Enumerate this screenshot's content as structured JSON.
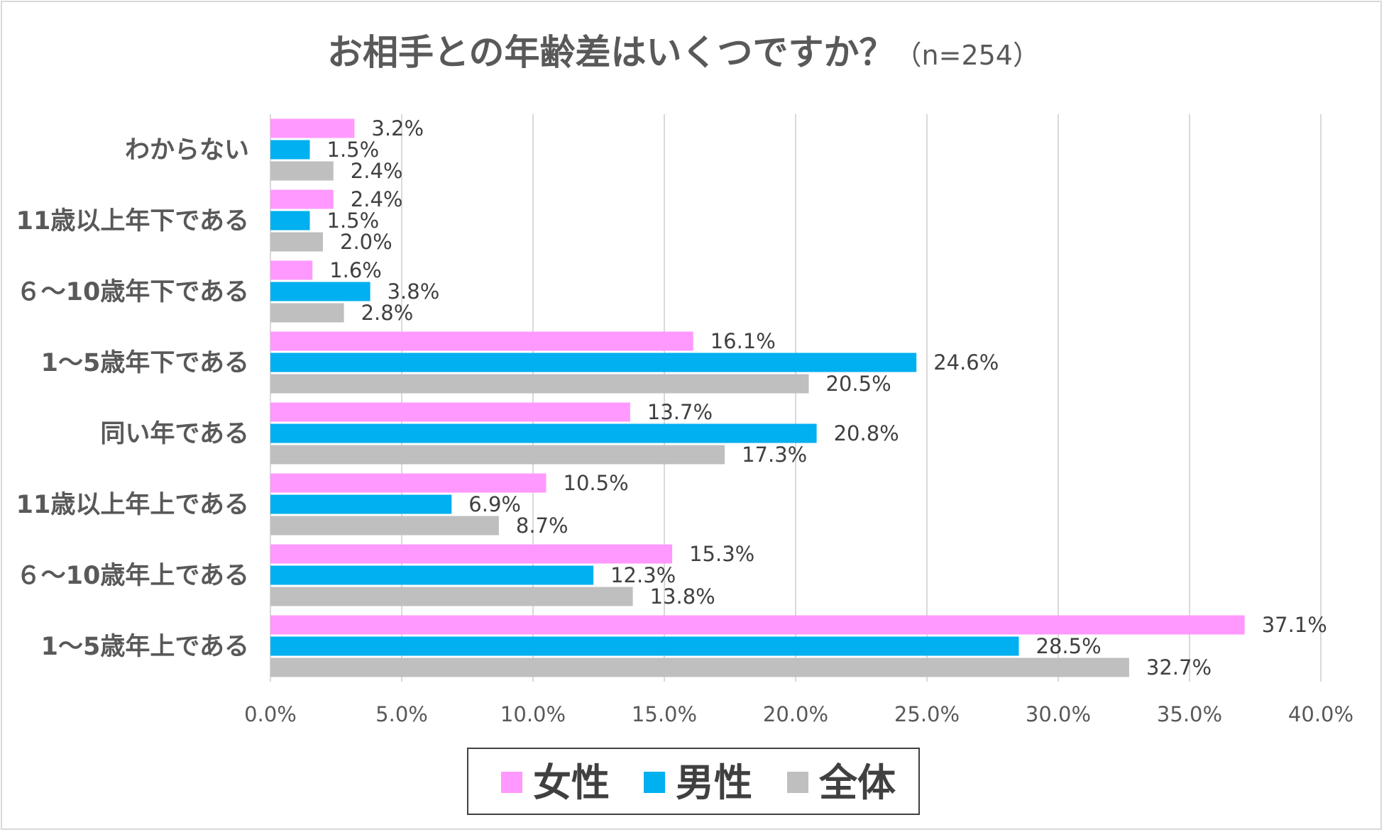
{
  "chart_data": {
    "type": "bar",
    "orientation": "horizontal",
    "title": "お相手との年齢差はいくつですか？",
    "subtitle": "（n=254）",
    "categories": [
      "わからない",
      "11歳以上年下である",
      "６～10歳年下である",
      "1～5歳年下である",
      "同い年である",
      "11歳以上年上である",
      "６～10歳年上である",
      "1～5歳年上である"
    ],
    "series": [
      {
        "name": "女性",
        "color": "#ff99ff",
        "values": [
          3.2,
          2.4,
          1.6,
          16.1,
          13.7,
          10.5,
          15.3,
          37.1
        ]
      },
      {
        "name": "男性",
        "color": "#00b0f0",
        "values": [
          1.5,
          1.5,
          3.8,
          24.6,
          20.8,
          6.9,
          12.3,
          28.5
        ]
      },
      {
        "name": "全体",
        "color": "#bfbfbf",
        "values": [
          2.4,
          2.0,
          2.8,
          20.5,
          17.3,
          8.7,
          13.8,
          32.7
        ]
      }
    ],
    "xlim": [
      0,
      40
    ],
    "xticks": [
      0,
      5,
      10,
      15,
      20,
      25,
      30,
      35,
      40
    ],
    "tick_suffix": "%",
    "value_suffix": "%",
    "grid": true,
    "legend_position": "bottom"
  }
}
